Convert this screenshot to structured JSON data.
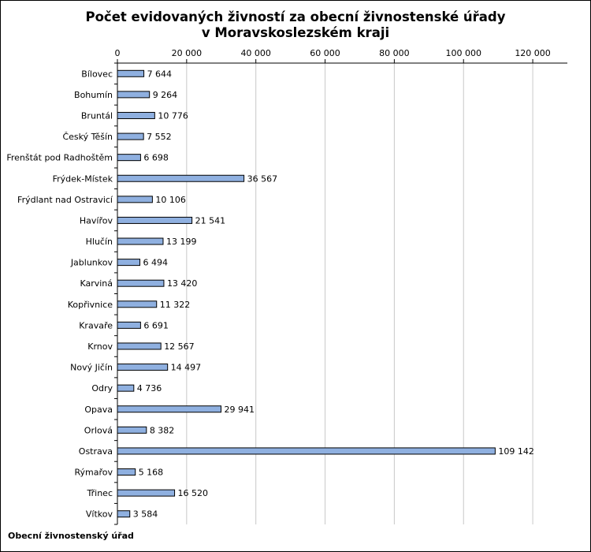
{
  "chart_data": {
    "type": "bar",
    "orientation": "horizontal",
    "title": "Počet evidovaných živností za obecní živnostenské úřady v Moravskoslezském kraji",
    "title_lines": [
      "Počet evidovaných živností za obecní živnostenské úřady",
      "v Moravskoslezském kraji"
    ],
    "xlabel": "",
    "ylabel": "Obecní živnostenský úřad",
    "xlim": [
      0,
      130000
    ],
    "axis_position": "top",
    "grid": true,
    "tick_values": [
      0,
      20000,
      40000,
      60000,
      80000,
      100000,
      120000
    ],
    "tick_labels": [
      "0",
      "20 000",
      "40 000",
      "60 000",
      "80 000",
      "100 000",
      "120 000"
    ],
    "categories": [
      "Bílovec",
      "Bohumín",
      "Bruntál",
      "Český Těšín",
      "Frenštát pod Radhoštěm",
      "Frýdek-Místek",
      "Frýdlant nad Ostravicí",
      "Havířov",
      "Hlučín",
      "Jablunkov",
      "Karviná",
      "Kopřivnice",
      "Kravaře",
      "Krnov",
      "Nový Jičín",
      "Odry",
      "Opava",
      "Orlová",
      "Ostrava",
      "Rýmařov",
      "Třinec",
      "Vítkov"
    ],
    "values": [
      7644,
      9264,
      10776,
      7552,
      6698,
      36567,
      10106,
      21541,
      13199,
      6494,
      13420,
      11322,
      6691,
      12567,
      14497,
      4736,
      29941,
      8382,
      109142,
      5168,
      16520,
      3584
    ],
    "value_labels": [
      "7 644",
      "9 264",
      "10 776",
      "7 552",
      "6 698",
      "36 567",
      "10 106",
      "21 541",
      "13 199",
      "6 494",
      "13 420",
      "11 322",
      "6 691",
      "12 567",
      "14 497",
      "4 736",
      "29 941",
      "8 382",
      "109 142",
      "5 168",
      "16 520",
      "3 584"
    ],
    "bar_color": "#8fb0e0",
    "bar_edge_color": "#000000"
  }
}
